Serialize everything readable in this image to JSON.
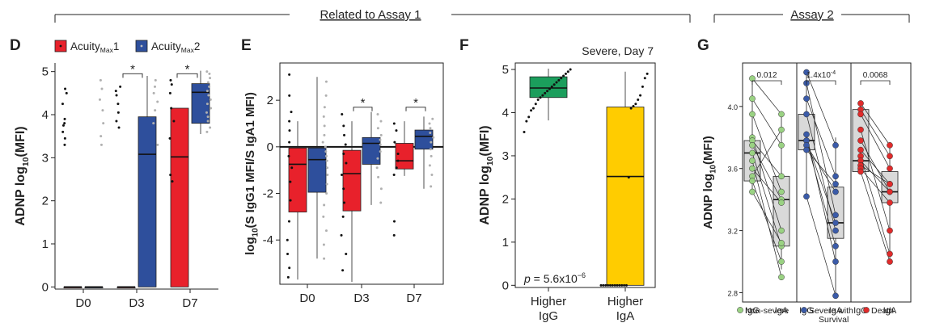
{
  "header": {
    "assay1": "Related to Assay 1",
    "assay2": "Assay 2"
  },
  "panels": {
    "D": "D",
    "E": "E",
    "F": "F",
    "G": "G"
  },
  "legend_d": {
    "item1_main": "Acuity",
    "item1_sub": "Max",
    "item1_num": "1",
    "item2_main": "Acuity",
    "item2_sub": "Max",
    "item2_num": "2"
  },
  "colors": {
    "red": "#e8212b",
    "blue": "#2e4f9c",
    "green": "#1b9e5c",
    "yellow": "#ffcc00",
    "g_green": "#9ad283",
    "g_blue": "#3b5ba8",
    "g_red": "#e02b2b",
    "box_grey": "#d9d9d9"
  },
  "chart_data": [
    {
      "type": "box",
      "panel": "D",
      "ylabel_main": "ADNP log",
      "ylabel_sub": "10",
      "ylabel_tail": "(MFI)",
      "categories": [
        "D0",
        "D3",
        "D7"
      ],
      "yticks": [
        0,
        1,
        2,
        3,
        4,
        5
      ],
      "ylim": [
        -0.05,
        5.2
      ],
      "significance": [
        "*",
        "*"
      ],
      "series": [
        {
          "name": "AcuityMax1",
          "boxes": [
            {
              "min": 0,
              "q1": 0,
              "median": 0,
              "q3": 0,
              "max": 0
            },
            {
              "min": 0,
              "q1": 0,
              "median": 0,
              "q3": 0,
              "max": 0
            },
            {
              "min": 0,
              "q1": 0,
              "median": 3.02,
              "q3": 4.15,
              "max": 4.15
            }
          ],
          "points": [
            [
              3.3,
              3.45,
              3.6,
              3.75,
              3.8,
              3.9,
              4.25,
              4.5,
              4.6
            ],
            [
              3.7,
              3.85,
              4.05,
              4.25,
              4.45,
              4.55,
              4.65
            ],
            [
              2.45,
              2.6,
              3.45,
              3.85,
              4.15,
              4.5,
              4.7,
              4.8
            ]
          ]
        },
        {
          "name": "AcuityMax2",
          "boxes": [
            {
              "min": 0,
              "q1": 0,
              "median": 0,
              "q3": 0,
              "max": 0
            },
            {
              "min": 0,
              "q1": 0,
              "median": 3.08,
              "q3": 3.95,
              "max": 4.9
            },
            {
              "min": 3.55,
              "q1": 3.8,
              "median": 4.52,
              "q3": 4.72,
              "max": 5.02
            }
          ],
          "points": [
            [
              3.3,
              3.5,
              3.8,
              4.1,
              4.35,
              4.6,
              4.8
            ],
            [
              3.3,
              3.8,
              4.1,
              4.3,
              4.5,
              4.65,
              4.8
            ],
            [
              3.6,
              3.7,
              3.85,
              3.95,
              4.05,
              4.15,
              4.25,
              4.35,
              4.45,
              4.55,
              4.65,
              4.75,
              4.85,
              4.95,
              5.0
            ]
          ]
        }
      ]
    },
    {
      "type": "box",
      "panel": "E",
      "ylabel_main": "log",
      "ylabel_sub": "10",
      "ylabel_tail": "(S IgG1 MFI/S IgA1 MFI)",
      "categories": [
        "D0",
        "D3",
        "D7"
      ],
      "yticks": [
        -4,
        -2,
        0,
        2
      ],
      "ylim": [
        -5.9,
        3.6
      ],
      "significance": [
        "*",
        "*"
      ],
      "series": [
        {
          "name": "AcuityMax1",
          "boxes": [
            {
              "min": -5.7,
              "q1": -2.8,
              "median": -0.75,
              "q3": -0.05,
              "max": 1.1
            },
            {
              "min": -5.8,
              "q1": -2.75,
              "median": -1.15,
              "q3": -0.15,
              "max": 1.1
            },
            {
              "min": -1.25,
              "q1": -0.95,
              "median": -0.6,
              "q3": 0.15,
              "max": 1.1
            }
          ],
          "points": [
            [
              -5.6,
              -5.2,
              -4.6,
              -4.0,
              -3.2,
              -2.3,
              -1.5,
              -0.9,
              -0.4,
              0.2,
              0.7,
              1.1,
              1.5,
              2.2,
              3.1
            ],
            [
              -5.3,
              -4.6,
              -3.8,
              -3.0,
              -2.4,
              -1.8,
              -1.2,
              -0.7,
              -0.3,
              0.1,
              0.5,
              0.9,
              1.4
            ],
            [
              -3.8,
              -3.2,
              -1.2,
              -0.9,
              -0.6,
              -0.3,
              0.2,
              0.7,
              1.0
            ]
          ]
        },
        {
          "name": "AcuityMax2",
          "boxes": [
            {
              "min": -4.8,
              "q1": -1.95,
              "median": -0.55,
              "q3": -0.05,
              "max": 3.0
            },
            {
              "min": -2.5,
              "q1": -0.75,
              "median": 0.15,
              "q3": 0.4,
              "max": 1.5
            },
            {
              "min": -1.8,
              "q1": -0.1,
              "median": 0.45,
              "q3": 0.72,
              "max": 1.3
            }
          ],
          "points": [
            [
              -4.8,
              -4.2,
              -3.6,
              -3.0,
              -2.5,
              -2.0,
              -1.6,
              -1.2,
              -0.9,
              -0.6,
              -0.4,
              -0.2,
              0.0,
              0.2,
              0.5,
              0.9,
              1.3,
              1.7,
              2.2,
              2.8
            ],
            [
              -2.4,
              -1.8,
              -1.3,
              -0.9,
              -0.5,
              -0.2,
              0.1,
              0.3,
              0.5,
              0.8,
              1.1,
              1.4
            ],
            [
              -1.7,
              -1.2,
              -0.8,
              -0.4,
              -0.1,
              0.2,
              0.4,
              0.6,
              0.8,
              1.0,
              1.2
            ]
          ]
        }
      ]
    },
    {
      "type": "box",
      "panel": "F",
      "title": "Severe, Day 7",
      "ylabel_main": "ADNP log",
      "ylabel_sub": "10",
      "ylabel_tail": "(MFI)",
      "categories": [
        "Higher\nIgG",
        "Higher\nIgA"
      ],
      "cat_line1": [
        "Higher",
        "Higher"
      ],
      "cat_line2": [
        "IgG",
        "IgA"
      ],
      "yticks": [
        0,
        1,
        2,
        3,
        4,
        5
      ],
      "ylim": [
        -0.05,
        5.15
      ],
      "pvalue_prefix": "p",
      "pvalue_text": " = 5.6x10",
      "pvalue_exp": "−6",
      "series": [
        {
          "name": "Higher IgG",
          "boxes": [
            {
              "min": 3.82,
              "q1": 4.35,
              "median": 4.57,
              "q3": 4.83,
              "max": 5.02
            }
          ],
          "points": [
            [
              3.55,
              3.8,
              3.9,
              4.05,
              4.1,
              4.2,
              4.3,
              4.35,
              4.4,
              4.45,
              4.5,
              4.55,
              4.6,
              4.65,
              4.7,
              4.75,
              4.8,
              4.85,
              4.9,
              4.95,
              5.0
            ]
          ]
        },
        {
          "name": "Higher IgA",
          "boxes": [
            {
              "min": 0,
              "q1": 0,
              "median": 2.52,
              "q3": 4.13,
              "max": 4.95
            }
          ],
          "points": [
            [
              0,
              0,
              0,
              0,
              0,
              0,
              0,
              0,
              0,
              0,
              0,
              0,
              2.5,
              4.1,
              4.15,
              4.2,
              4.3,
              4.4,
              4.6,
              4.8,
              4.9
            ]
          ]
        }
      ]
    },
    {
      "type": "paired-box",
      "panel": "G",
      "ylabel_main": "ADNP log",
      "ylabel_sub": "10",
      "ylabel_tail": "(MFI)",
      "yticks": [
        "2.8",
        "3.2",
        "3.6",
        "4.0"
      ],
      "ytick_values": [
        2.8,
        3.2,
        3.6,
        4.0
      ],
      "ylim": [
        2.74,
        4.28
      ],
      "xlabels": [
        "IgG",
        "IgA",
        "IgG",
        "IgA",
        "IgG",
        "IgA"
      ],
      "legend": [
        "Non-severe",
        "Severe with Survival",
        "Death"
      ],
      "legend_line1": [
        "Non-severe",
        "Severe with",
        "Death"
      ],
      "legend_line2": [
        "",
        "Survival",
        ""
      ],
      "groups": [
        {
          "name": "Non-severe",
          "pvalue": "0.012",
          "igg_box": {
            "min": 3.45,
            "q1": 3.52,
            "median": 3.7,
            "q3": 3.78,
            "max": 4.18
          },
          "iga_box": {
            "min": 2.95,
            "q1": 3.1,
            "median": 3.4,
            "q3": 3.55,
            "max": 3.95
          },
          "pairs": [
            [
              4.18,
              3.95
            ],
            [
              4.05,
              3.75
            ],
            [
              3.95,
              3.45
            ],
            [
              3.8,
              3.2
            ],
            [
              3.78,
              3.55
            ],
            [
              3.75,
              3.4
            ],
            [
              3.7,
              3.1
            ],
            [
              3.65,
              2.9
            ],
            [
              3.6,
              3.38
            ],
            [
              3.55,
              3.85
            ],
            [
              3.52,
              3.0
            ],
            [
              3.45,
              3.12
            ]
          ]
        },
        {
          "name": "Severe with Survival",
          "pvalue_base": "1.4x10",
          "pvalue_exp": "-4",
          "igg_box": {
            "min": 3.42,
            "q1": 3.72,
            "median": 3.78,
            "q3": 3.95,
            "max": 4.22
          },
          "iga_box": {
            "min": 2.78,
            "q1": 3.15,
            "median": 3.25,
            "q3": 3.48,
            "max": 3.8
          },
          "pairs": [
            [
              4.22,
              3.75
            ],
            [
              4.15,
              3.3
            ],
            [
              4.05,
              3.55
            ],
            [
              3.95,
              3.2
            ],
            [
              3.82,
              3.0
            ],
            [
              3.78,
              3.1
            ],
            [
              3.78,
              3.25
            ],
            [
              3.75,
              3.45
            ],
            [
              3.72,
              3.5
            ],
            [
              3.42,
              2.78
            ]
          ]
        },
        {
          "name": "Death",
          "pvalue": "0.0068",
          "igg_box": {
            "min": 3.58,
            "q1": 3.58,
            "median": 3.65,
            "q3": 3.98,
            "max": 4.02
          },
          "iga_box": {
            "min": 3.0,
            "q1": 3.38,
            "median": 3.45,
            "q3": 3.58,
            "max": 3.75
          },
          "pairs": [
            [
              4.02,
              3.75
            ],
            [
              3.98,
              3.68
            ],
            [
              3.95,
              3.6
            ],
            [
              3.85,
              3.2
            ],
            [
              3.78,
              3.45
            ],
            [
              3.72,
              3.5
            ],
            [
              3.68,
              3.05
            ],
            [
              3.65,
              3.45
            ],
            [
              3.62,
              3.5
            ],
            [
              3.6,
              3.38
            ],
            [
              3.58,
              3.0
            ]
          ]
        }
      ]
    }
  ]
}
